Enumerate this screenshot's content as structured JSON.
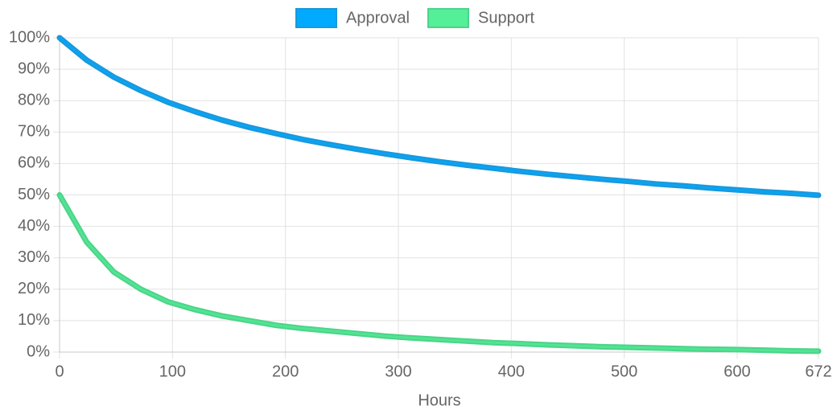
{
  "chart_data": {
    "type": "line",
    "x_label": "Hours",
    "x": [
      0,
      24,
      48,
      72,
      96,
      120,
      144,
      168,
      192,
      216,
      240,
      264,
      288,
      312,
      336,
      360,
      384,
      408,
      432,
      456,
      480,
      504,
      528,
      552,
      576,
      600,
      624,
      648,
      672
    ],
    "series": [
      {
        "name": "Approval",
        "color": "#00aaff",
        "border": "#1a98dc",
        "values": [
          100,
          92.9,
          87.5,
          83.2,
          79.5,
          76.5,
          73.8,
          71.5,
          69.5,
          67.6,
          66.0,
          64.5,
          63.1,
          61.8,
          60.6,
          59.5,
          58.5,
          57.5,
          56.6,
          55.8,
          55.0,
          54.3,
          53.5,
          52.9,
          52.2,
          51.6,
          51.0,
          50.5,
          49.9
        ]
      },
      {
        "name": "Support",
        "color": "#55ee99",
        "border": "#4cd489",
        "values": [
          50,
          35,
          25.5,
          20,
          16,
          13.5,
          11.5,
          10,
          8.5,
          7.5,
          6.7,
          5.9,
          5.1,
          4.5,
          4,
          3.5,
          3,
          2.7,
          2.3,
          2,
          1.7,
          1.5,
          1.3,
          1.1,
          0.9,
          0.8,
          0.6,
          0.4,
          0.3
        ]
      }
    ],
    "xlim": [
      0,
      672
    ],
    "xticks": [
      0,
      100,
      200,
      300,
      400,
      500,
      600,
      672
    ],
    "ylim": [
      0,
      100
    ],
    "yticks": [
      {
        "value": 0,
        "label": "0%"
      },
      {
        "value": 10,
        "label": "10%"
      },
      {
        "value": 20,
        "label": "20%"
      },
      {
        "value": 30,
        "label": "30%"
      },
      {
        "value": 40,
        "label": "40%"
      },
      {
        "value": 50,
        "label": "50%"
      },
      {
        "value": 60,
        "label": "60%"
      },
      {
        "value": 70,
        "label": "70%"
      },
      {
        "value": 80,
        "label": "80%"
      },
      {
        "value": 90,
        "label": "90%"
      },
      {
        "value": 100,
        "label": "100%"
      }
    ],
    "grid": true,
    "legend": "top"
  }
}
